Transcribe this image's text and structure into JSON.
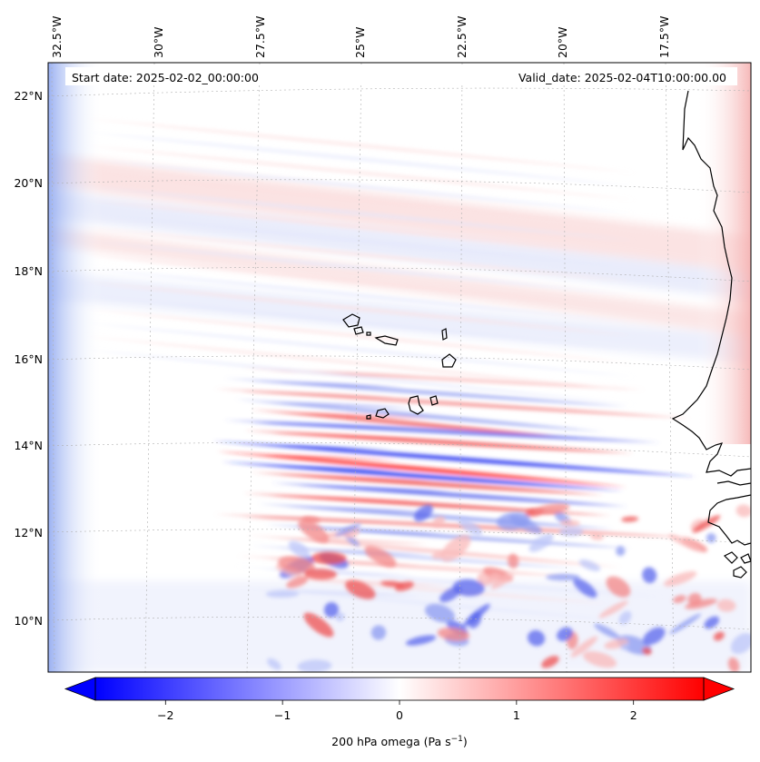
{
  "map": {
    "header_left": "Start date: 2025-02-02_00:00:00",
    "header_right": "Valid_date: 2025-02-04T10:00:00.00",
    "lon_labels": [
      "32.5°W",
      "30°W",
      "27.5°W",
      "25°W",
      "22.5°W",
      "20°W",
      "17.5°W"
    ],
    "lat_labels": [
      "22°N",
      "20°N",
      "18°N",
      "16°N",
      "14°N",
      "12°N",
      "10°N"
    ],
    "field_name": "200 hPa omega",
    "field_unit_base": "Pa s",
    "field_unit_exp": "−1"
  },
  "colorbar": {
    "ticks": [
      "−2",
      "−1",
      "0",
      "1",
      "2"
    ],
    "tick_values": [
      -2,
      -1,
      0,
      1,
      2
    ],
    "range": [
      -2.6,
      2.6
    ],
    "extend": "both",
    "color_low": "#0000ff",
    "color_mid": "#ffffff",
    "color_high": "#ff0000"
  },
  "colors": {
    "coastline": "#000000",
    "gridline": "#b0b0b0"
  }
}
